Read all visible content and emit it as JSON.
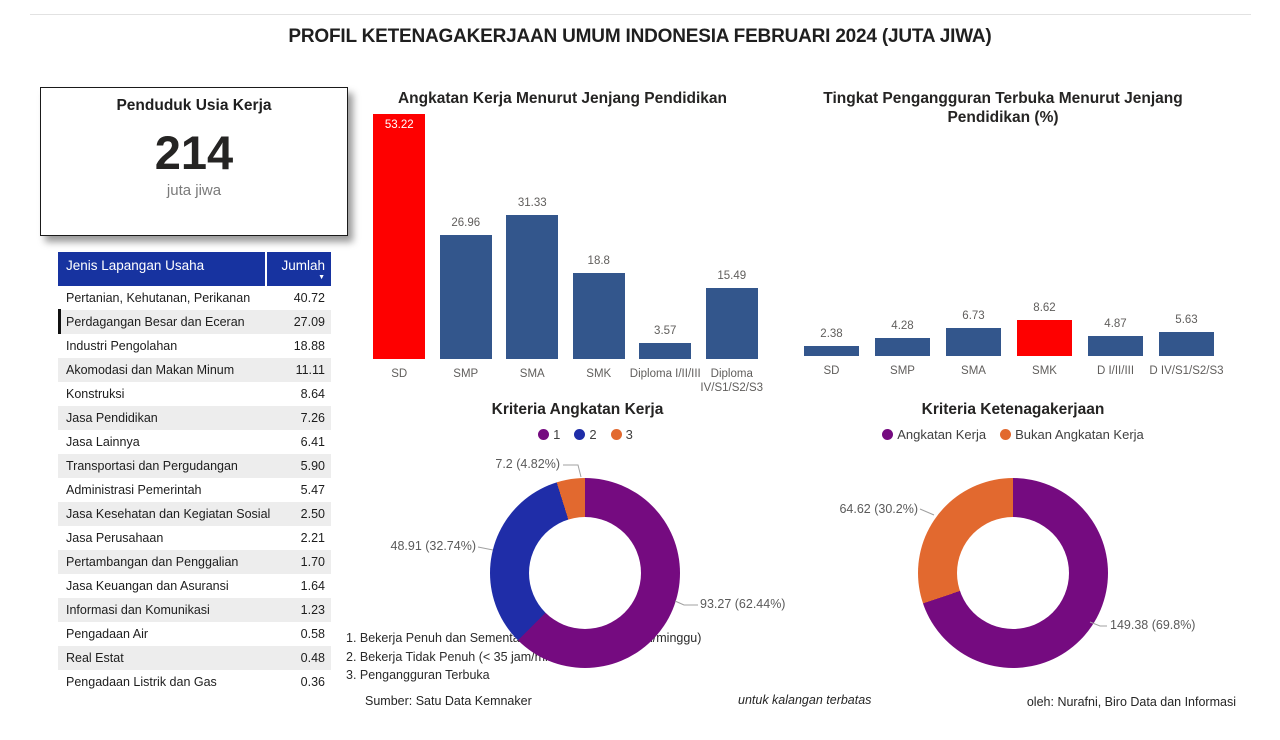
{
  "title": "PROFIL KETENAGAKERJAAN UMUM INDONESIA FEBRUARI 2024 (JUTA JIWA)",
  "kpi_card": {
    "title": "Penduduk Usia Kerja",
    "value": "214",
    "unit": "juta jiwa"
  },
  "table": {
    "columns": [
      "Jenis Lapangan Usaha",
      "Jumlah"
    ],
    "sort_icon": "▼",
    "marker_row_index": 1,
    "rows": [
      {
        "label": "Pertanian, Kehutanan, Perikanan",
        "value": "40.72"
      },
      {
        "label": "Perdagangan Besar dan Eceran",
        "value": "27.09"
      },
      {
        "label": "Industri Pengolahan",
        "value": "18.88"
      },
      {
        "label": "Akomodasi dan Makan Minum",
        "value": "11.11"
      },
      {
        "label": "Konstruksi",
        "value": "8.64"
      },
      {
        "label": "Jasa Pendidikan",
        "value": "7.26"
      },
      {
        "label": "Jasa Lainnya",
        "value": "6.41"
      },
      {
        "label": "Transportasi dan Pergudangan",
        "value": "5.90"
      },
      {
        "label": "Administrasi Pemerintah",
        "value": "5.47"
      },
      {
        "label": "Jasa Kesehatan dan Kegiatan Sosial",
        "value": "2.50"
      },
      {
        "label": "Jasa Perusahaan",
        "value": "2.21"
      },
      {
        "label": "Pertambangan dan Penggalian",
        "value": "1.70"
      },
      {
        "label": "Jasa Keuangan dan Asuransi",
        "value": "1.64"
      },
      {
        "label": "Informasi dan Komunikasi",
        "value": "1.23"
      },
      {
        "label": "Pengadaan Air",
        "value": "0.58"
      },
      {
        "label": "Real Estat",
        "value": "0.48"
      },
      {
        "label": "Pengadaan Listrik dan Gas",
        "value": "0.36"
      }
    ]
  },
  "chart_data": [
    {
      "type": "bar",
      "title": "Angkatan Kerja Menurut Jenjang Pendidikan",
      "categories": [
        "SD",
        "SMP",
        "SMA",
        "SMK",
        "Diploma I/II/III",
        "Diploma IV/S1/S2/S3"
      ],
      "values": [
        53.22,
        26.96,
        31.33,
        18.8,
        3.57,
        15.49
      ],
      "data_labels": [
        "53.22",
        "26.96",
        "31.33",
        "18.8",
        "3.57",
        "15.49"
      ],
      "highlight_index": 0,
      "bar_color": "#33568C",
      "highlight_color": "#FE0000",
      "ylim": [
        0,
        55
      ],
      "grid": false
    },
    {
      "type": "bar",
      "title": "Tingkat Pengangguran Terbuka Menurut Jenjang Pendidikan (%)",
      "categories": [
        "SD",
        "SMP",
        "SMA",
        "SMK",
        "D I/II/III",
        "D IV/S1/S2/S3"
      ],
      "values": [
        2.38,
        4.28,
        6.73,
        8.62,
        4.87,
        5.63
      ],
      "data_labels": [
        "2.38",
        "4.28",
        "6.73",
        "8.62",
        "4.87",
        "5.63"
      ],
      "highlight_index": 3,
      "bar_color": "#33568C",
      "highlight_color": "#FE0000",
      "ylim": [
        0,
        9
      ],
      "grid": false
    },
    {
      "type": "donut",
      "title": "Kriteria Angkatan Kerja",
      "legend_position": "top",
      "slices": [
        {
          "name": "1",
          "value": 93.27,
          "share_pct": 62.44,
          "callout": "93.27 (62.44%)",
          "color": "#750B80"
        },
        {
          "name": "2",
          "value": 48.91,
          "share_pct": 32.74,
          "callout": "48.91 (32.74%)",
          "color": "#1F2DA8"
        },
        {
          "name": "3",
          "value": 7.2,
          "share_pct": 4.82,
          "callout": "7.2 (4.82%)",
          "color": "#E2692F"
        }
      ],
      "footnotes": [
        "1. Bekerja Penuh dan Sementara Tidak Kerja (> 34 jam/minggu)",
        "2. Bekerja Tidak Penuh (< 35 jam/minggu)",
        "3. Pengangguran Terbuka"
      ]
    },
    {
      "type": "donut",
      "title": "Kriteria Ketenagakerjaan",
      "legend_position": "top",
      "slices": [
        {
          "name": "Angkatan Kerja",
          "value": 149.38,
          "share_pct": 69.8,
          "callout": "149.38 (69.8%)",
          "color": "#750B80"
        },
        {
          "name": "Bukan Angkatan Kerja",
          "value": 64.62,
          "share_pct": 30.2,
          "callout": "64.62 (30.2%)",
          "color": "#E2692F"
        }
      ]
    }
  ],
  "footer": {
    "source": "Sumber: Satu Data Kemnaker",
    "restriction": "untuk kalangan terbatas",
    "author": "oleh: Nurafni, Biro Data dan Informasi"
  },
  "colors": {
    "table_header": "#1733A0",
    "row_alt": "#EDEDED",
    "bar_blue": "#33568C",
    "highlight_red": "#FE0000",
    "donut_purple": "#750B80",
    "donut_blue": "#1F2DA8",
    "donut_orange": "#E2692F",
    "label_gray": "#605E5C"
  }
}
